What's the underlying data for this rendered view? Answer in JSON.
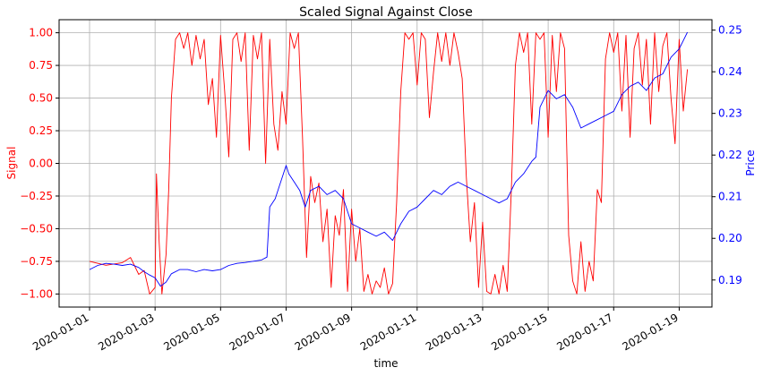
{
  "chart_data": {
    "type": "line",
    "title": "Scaled Signal Against Close",
    "xlabel": "time",
    "ylabel_left": "Signal",
    "ylabel_right": "Price",
    "grid": true,
    "colors": {
      "signal": "#ff0000",
      "price": "#0000ff",
      "grid": "#b0b0b0",
      "axis": "#000000"
    },
    "x_range": [
      "2020-01-01",
      "2020-01-20"
    ],
    "x_ticks": [
      "2020-01-01",
      "2020-01-03",
      "2020-01-05",
      "2020-01-07",
      "2020-01-09",
      "2020-01-11",
      "2020-01-13",
      "2020-01-15",
      "2020-01-17",
      "2020-01-19"
    ],
    "y_left_range": [
      -1.1,
      1.1
    ],
    "y_left_ticks": [
      "1.00",
      "0.75",
      "0.50",
      "0.25",
      "0.00",
      "−0.25",
      "−0.50",
      "−0.75",
      "−1.00"
    ],
    "y_right_range": [
      0.1835,
      0.2525
    ],
    "y_right_ticks": [
      "0.25",
      "0.24",
      "0.23",
      "0.22",
      "0.21",
      "0.20",
      "0.19"
    ],
    "series": [
      {
        "axis": "left",
        "color": "#ff0000",
        "points": [
          [
            "2020-01-01",
            -0.75
          ],
          [
            "2020-01-01 12:00",
            -0.78
          ],
          [
            "2020-01-02",
            -0.76
          ],
          [
            "2020-01-02 06:00",
            -0.72
          ],
          [
            "2020-01-02 12:00",
            -0.85
          ],
          [
            "2020-01-02 16:00",
            -0.82
          ],
          [
            "2020-01-02 20:00",
            -1.0
          ],
          [
            "2020-01-03",
            -0.95
          ],
          [
            "2020-01-03 01:00",
            -0.08
          ],
          [
            "2020-01-03 03:00",
            -0.6
          ],
          [
            "2020-01-03 05:00",
            -1.0
          ],
          [
            "2020-01-03 08:00",
            -0.7
          ],
          [
            "2020-01-03 10:00",
            -0.2
          ],
          [
            "2020-01-03 12:00",
            0.5
          ],
          [
            "2020-01-03 15:00",
            0.95
          ],
          [
            "2020-01-03 18:00",
            1.0
          ],
          [
            "2020-01-03 21:00",
            0.88
          ],
          [
            "2020-01-04",
            1.0
          ],
          [
            "2020-01-04 03:00",
            0.75
          ],
          [
            "2020-01-04 06:00",
            0.98
          ],
          [
            "2020-01-04 09:00",
            0.8
          ],
          [
            "2020-01-04 12:00",
            0.95
          ],
          [
            "2020-01-04 15:00",
            0.45
          ],
          [
            "2020-01-04 18:00",
            0.65
          ],
          [
            "2020-01-04 21:00",
            0.2
          ],
          [
            "2020-01-05",
            0.98
          ],
          [
            "2020-01-05 03:00",
            0.55
          ],
          [
            "2020-01-05 06:00",
            0.05
          ],
          [
            "2020-01-05 09:00",
            0.95
          ],
          [
            "2020-01-05 12:00",
            1.0
          ],
          [
            "2020-01-05 15:00",
            0.78
          ],
          [
            "2020-01-05 18:00",
            1.0
          ],
          [
            "2020-01-05 21:00",
            0.1
          ],
          [
            "2020-01-06",
            0.98
          ],
          [
            "2020-01-06 03:00",
            0.8
          ],
          [
            "2020-01-06 06:00",
            1.0
          ],
          [
            "2020-01-06 09:00",
            0.0
          ],
          [
            "2020-01-06 12:00",
            0.95
          ],
          [
            "2020-01-06 15:00",
            0.3
          ],
          [
            "2020-01-06 18:00",
            0.1
          ],
          [
            "2020-01-06 21:00",
            0.55
          ],
          [
            "2020-01-07",
            0.3
          ],
          [
            "2020-01-07 03:00",
            1.0
          ],
          [
            "2020-01-07 06:00",
            0.88
          ],
          [
            "2020-01-07 09:00",
            1.0
          ],
          [
            "2020-01-07 12:00",
            0.2
          ],
          [
            "2020-01-07 15:00",
            -0.72
          ],
          [
            "2020-01-07 18:00",
            -0.1
          ],
          [
            "2020-01-07 21:00",
            -0.3
          ],
          [
            "2020-01-08",
            -0.15
          ],
          [
            "2020-01-08 03:00",
            -0.6
          ],
          [
            "2020-01-08 06:00",
            -0.35
          ],
          [
            "2020-01-08 09:00",
            -0.95
          ],
          [
            "2020-01-08 12:00",
            -0.4
          ],
          [
            "2020-01-08 15:00",
            -0.55
          ],
          [
            "2020-01-08 18:00",
            -0.2
          ],
          [
            "2020-01-08 21:00",
            -0.98
          ],
          [
            "2020-01-09",
            -0.35
          ],
          [
            "2020-01-09 03:00",
            -0.75
          ],
          [
            "2020-01-09 06:00",
            -0.5
          ],
          [
            "2020-01-09 09:00",
            -0.98
          ],
          [
            "2020-01-09 12:00",
            -0.85
          ],
          [
            "2020-01-09 15:00",
            -1.0
          ],
          [
            "2020-01-09 18:00",
            -0.9
          ],
          [
            "2020-01-09 21:00",
            -0.95
          ],
          [
            "2020-01-10",
            -0.8
          ],
          [
            "2020-01-10 03:00",
            -1.0
          ],
          [
            "2020-01-10 06:00",
            -0.92
          ],
          [
            "2020-01-10 09:00",
            -0.3
          ],
          [
            "2020-01-10 12:00",
            0.55
          ],
          [
            "2020-01-10 15:00",
            1.0
          ],
          [
            "2020-01-10 18:00",
            0.95
          ],
          [
            "2020-01-10 21:00",
            1.0
          ],
          [
            "2020-01-11",
            0.6
          ],
          [
            "2020-01-11 03:00",
            1.0
          ],
          [
            "2020-01-11 06:00",
            0.95
          ],
          [
            "2020-01-11 09:00",
            0.35
          ],
          [
            "2020-01-11 12:00",
            0.7
          ],
          [
            "2020-01-11 15:00",
            1.0
          ],
          [
            "2020-01-11 18:00",
            0.78
          ],
          [
            "2020-01-11 21:00",
            1.0
          ],
          [
            "2020-01-12",
            0.75
          ],
          [
            "2020-01-12 03:00",
            1.0
          ],
          [
            "2020-01-12 06:00",
            0.85
          ],
          [
            "2020-01-12 09:00",
            0.65
          ],
          [
            "2020-01-12 12:00",
            -0.1
          ],
          [
            "2020-01-12 15:00",
            -0.6
          ],
          [
            "2020-01-12 18:00",
            -0.3
          ],
          [
            "2020-01-12 21:00",
            -0.95
          ],
          [
            "2020-01-13",
            -0.45
          ],
          [
            "2020-01-13 03:00",
            -0.98
          ],
          [
            "2020-01-13 06:00",
            -1.0
          ],
          [
            "2020-01-13 09:00",
            -0.85
          ],
          [
            "2020-01-13 12:00",
            -1.0
          ],
          [
            "2020-01-13 15:00",
            -0.78
          ],
          [
            "2020-01-13 18:00",
            -0.98
          ],
          [
            "2020-01-13 21:00",
            -0.2
          ],
          [
            "2020-01-14",
            0.75
          ],
          [
            "2020-01-14 03:00",
            1.0
          ],
          [
            "2020-01-14 06:00",
            0.85
          ],
          [
            "2020-01-14 09:00",
            1.0
          ],
          [
            "2020-01-14 12:00",
            0.3
          ],
          [
            "2020-01-14 15:00",
            1.0
          ],
          [
            "2020-01-14 18:00",
            0.95
          ],
          [
            "2020-01-14 21:00",
            1.0
          ],
          [
            "2020-01-15",
            0.2
          ],
          [
            "2020-01-15 03:00",
            0.98
          ],
          [
            "2020-01-15 06:00",
            0.55
          ],
          [
            "2020-01-15 09:00",
            1.0
          ],
          [
            "2020-01-15 12:00",
            0.88
          ],
          [
            "2020-01-15 15:00",
            -0.55
          ],
          [
            "2020-01-15 18:00",
            -0.9
          ],
          [
            "2020-01-15 21:00",
            -1.0
          ],
          [
            "2020-01-16",
            -0.6
          ],
          [
            "2020-01-16 03:00",
            -0.98
          ],
          [
            "2020-01-16 06:00",
            -0.75
          ],
          [
            "2020-01-16 09:00",
            -0.9
          ],
          [
            "2020-01-16 12:00",
            -0.2
          ],
          [
            "2020-01-16 15:00",
            -0.3
          ],
          [
            "2020-01-16 18:00",
            0.8
          ],
          [
            "2020-01-16 21:00",
            1.0
          ],
          [
            "2020-01-17",
            0.85
          ],
          [
            "2020-01-17 03:00",
            1.0
          ],
          [
            "2020-01-17 06:00",
            0.4
          ],
          [
            "2020-01-17 09:00",
            0.98
          ],
          [
            "2020-01-17 12:00",
            0.2
          ],
          [
            "2020-01-17 15:00",
            0.88
          ],
          [
            "2020-01-17 18:00",
            1.0
          ],
          [
            "2020-01-17 21:00",
            0.6
          ],
          [
            "2020-01-18",
            0.95
          ],
          [
            "2020-01-18 03:00",
            0.3
          ],
          [
            "2020-01-18 06:00",
            1.0
          ],
          [
            "2020-01-18 09:00",
            0.55
          ],
          [
            "2020-01-18 12:00",
            0.9
          ],
          [
            "2020-01-18 15:00",
            1.0
          ],
          [
            "2020-01-18 18:00",
            0.5
          ],
          [
            "2020-01-18 21:00",
            0.15
          ],
          [
            "2020-01-19",
            0.95
          ],
          [
            "2020-01-19 03:00",
            0.4
          ],
          [
            "2020-01-19 06:00",
            0.72
          ]
        ]
      },
      {
        "axis": "right",
        "color": "#0000ff",
        "points": [
          [
            "2020-01-01",
            0.1925
          ],
          [
            "2020-01-01 06:00",
            0.1935
          ],
          [
            "2020-01-01 12:00",
            0.194
          ],
          [
            "2020-01-01 18:00",
            0.1938
          ],
          [
            "2020-01-02",
            0.1935
          ],
          [
            "2020-01-02 06:00",
            0.1938
          ],
          [
            "2020-01-02 12:00",
            0.193
          ],
          [
            "2020-01-02 16:00",
            0.192
          ],
          [
            "2020-01-02 20:00",
            0.1912
          ],
          [
            "2020-01-03",
            0.1905
          ],
          [
            "2020-01-03 04:00",
            0.1885
          ],
          [
            "2020-01-03 08:00",
            0.1895
          ],
          [
            "2020-01-03 12:00",
            0.1915
          ],
          [
            "2020-01-03 18:00",
            0.1925
          ],
          [
            "2020-01-04",
            0.1925
          ],
          [
            "2020-01-04 06:00",
            0.192
          ],
          [
            "2020-01-04 12:00",
            0.1925
          ],
          [
            "2020-01-04 18:00",
            0.1922
          ],
          [
            "2020-01-05",
            0.1925
          ],
          [
            "2020-01-05 06:00",
            0.1935
          ],
          [
            "2020-01-05 12:00",
            0.194
          ],
          [
            "2020-01-05 18:00",
            0.1942
          ],
          [
            "2020-01-06",
            0.1945
          ],
          [
            "2020-01-06 06:00",
            0.1948
          ],
          [
            "2020-01-06 10:00",
            0.1955
          ],
          [
            "2020-01-06 12:00",
            0.2075
          ],
          [
            "2020-01-06 16:00",
            0.2095
          ],
          [
            "2020-01-06 20:00",
            0.2135
          ],
          [
            "2020-01-07",
            0.2175
          ],
          [
            "2020-01-07 02:00",
            0.2155
          ],
          [
            "2020-01-07 06:00",
            0.2135
          ],
          [
            "2020-01-07 10:00",
            0.2115
          ],
          [
            "2020-01-07 14:00",
            0.2075
          ],
          [
            "2020-01-07 18:00",
            0.2115
          ],
          [
            "2020-01-08",
            0.2125
          ],
          [
            "2020-01-08 06:00",
            0.2105
          ],
          [
            "2020-01-08 12:00",
            0.2115
          ],
          [
            "2020-01-08 18:00",
            0.2095
          ],
          [
            "2020-01-09",
            0.2035
          ],
          [
            "2020-01-09 06:00",
            0.2025
          ],
          [
            "2020-01-09 12:00",
            0.2015
          ],
          [
            "2020-01-09 18:00",
            0.2005
          ],
          [
            "2020-01-10",
            0.2015
          ],
          [
            "2020-01-10 06:00",
            0.1995
          ],
          [
            "2020-01-10 12:00",
            0.2035
          ],
          [
            "2020-01-10 18:00",
            0.2065
          ],
          [
            "2020-01-11",
            0.2075
          ],
          [
            "2020-01-11 06:00",
            0.2095
          ],
          [
            "2020-01-11 12:00",
            0.2115
          ],
          [
            "2020-01-11 18:00",
            0.2105
          ],
          [
            "2020-01-12",
            0.2125
          ],
          [
            "2020-01-12 06:00",
            0.2135
          ],
          [
            "2020-01-12 12:00",
            0.2125
          ],
          [
            "2020-01-12 18:00",
            0.2115
          ],
          [
            "2020-01-13",
            0.2105
          ],
          [
            "2020-01-13 06:00",
            0.2095
          ],
          [
            "2020-01-13 12:00",
            0.2085
          ],
          [
            "2020-01-13 18:00",
            0.2095
          ],
          [
            "2020-01-14",
            0.2135
          ],
          [
            "2020-01-14 06:00",
            0.2155
          ],
          [
            "2020-01-14 12:00",
            0.2185
          ],
          [
            "2020-01-14 15:00",
            0.2195
          ],
          [
            "2020-01-14 18:00",
            0.2315
          ],
          [
            "2020-01-15",
            0.2355
          ],
          [
            "2020-01-15 06:00",
            0.2335
          ],
          [
            "2020-01-15 12:00",
            0.2345
          ],
          [
            "2020-01-15 18:00",
            0.2315
          ],
          [
            "2020-01-16",
            0.2265
          ],
          [
            "2020-01-16 06:00",
            0.2275
          ],
          [
            "2020-01-16 12:00",
            0.2285
          ],
          [
            "2020-01-16 18:00",
            0.2295
          ],
          [
            "2020-01-17",
            0.2305
          ],
          [
            "2020-01-17 06:00",
            0.2345
          ],
          [
            "2020-01-17 12:00",
            0.2365
          ],
          [
            "2020-01-17 18:00",
            0.2375
          ],
          [
            "2020-01-18",
            0.2355
          ],
          [
            "2020-01-18 06:00",
            0.2385
          ],
          [
            "2020-01-18 12:00",
            0.2395
          ],
          [
            "2020-01-18 18:00",
            0.2435
          ],
          [
            "2020-01-19",
            0.2455
          ],
          [
            "2020-01-19 03:00",
            0.2475
          ],
          [
            "2020-01-19 06:00",
            0.2495
          ]
        ]
      }
    ]
  }
}
